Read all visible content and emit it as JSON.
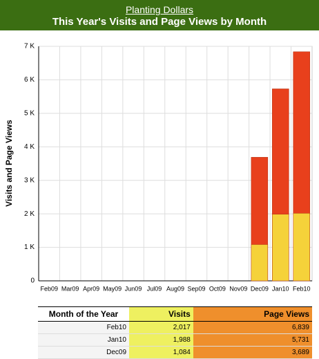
{
  "header": {
    "site": "Planting Dollars",
    "title": "This Year's Visits and Page Views by Month"
  },
  "chart_data": {
    "type": "bar",
    "y_label": "Visits and Page Views",
    "categories": [
      "Feb09",
      "Mar09",
      "Apr09",
      "May09",
      "Jun09",
      "Jul09",
      "Aug09",
      "Sep09",
      "Oct09",
      "Nov09",
      "Dec09",
      "Jan10",
      "Feb10"
    ],
    "series": [
      {
        "color": "#e8401c",
        "values": [
          null,
          null,
          null,
          null,
          null,
          null,
          null,
          null,
          null,
          null,
          3689,
          5731,
          6839
        ]
      },
      {
        "color": "#f5d23a",
        "values": [
          null,
          null,
          null,
          null,
          null,
          null,
          null,
          null,
          null,
          null,
          1084,
          1988,
          2017
        ]
      }
    ],
    "ylim": [
      0,
      7000
    ],
    "yticks": [
      0,
      {
        "value": 1000,
        "label": "1 K"
      },
      {
        "value": 2000,
        "label": "2 K"
      },
      {
        "value": 3000,
        "label": "3 K"
      },
      {
        "value": 4000,
        "label": "4 K"
      },
      {
        "value": 5000,
        "label": "5 K"
      },
      {
        "value": 6000,
        "label": "6 K"
      },
      {
        "value": 7000,
        "label": "7 K"
      }
    ],
    "grid": true
  },
  "table": {
    "header": [
      "Month of the Year",
      "Visits",
      "Page Views"
    ],
    "rows": [
      [
        "Feb10",
        "2,017",
        "6,839"
      ],
      [
        "Jan10",
        "1,988",
        "5,731"
      ],
      [
        "Dec09",
        "1,084",
        "3,689"
      ]
    ]
  }
}
